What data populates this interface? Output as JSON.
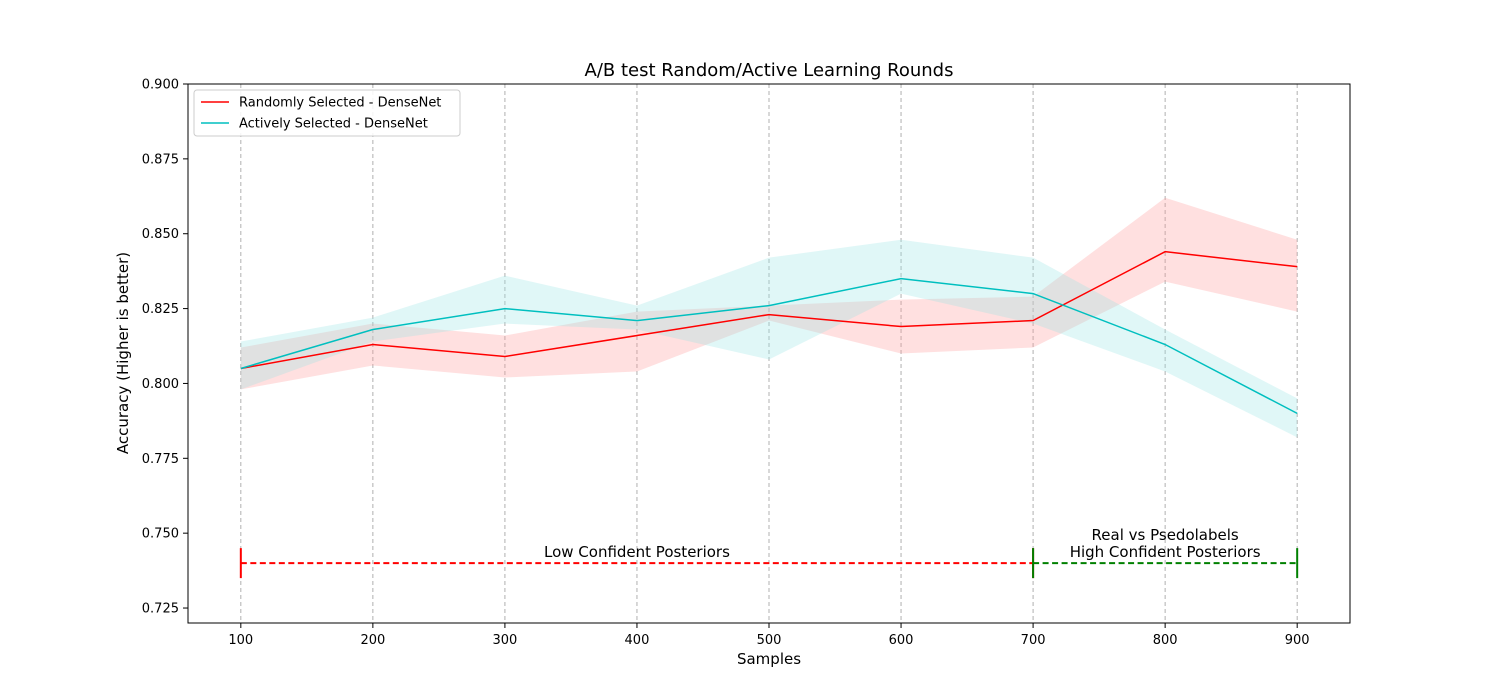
{
  "chart_data": {
    "type": "line",
    "title": "A/B test Random/Active Learning Rounds",
    "xlabel": "Samples",
    "ylabel": "Accuracy (Higher is better)",
    "x": [
      100,
      200,
      300,
      400,
      500,
      600,
      700,
      800,
      900
    ],
    "xlim": [
      60,
      940
    ],
    "ylim": [
      0.72,
      0.9
    ],
    "xticks": [
      100,
      200,
      300,
      400,
      500,
      600,
      700,
      800,
      900
    ],
    "yticks": [
      0.725,
      0.75,
      0.775,
      0.8,
      0.825,
      0.85,
      0.875,
      0.9
    ],
    "ytick_labels": [
      "0.725",
      "0.750",
      "0.775",
      "0.800",
      "0.825",
      "0.850",
      "0.875",
      "0.900"
    ],
    "grid": "x-dashed",
    "legend_position": "top-left",
    "series": [
      {
        "name": "Randomly Selected - DenseNet",
        "color": "#ff0000",
        "band_color": "#ff9999",
        "values": [
          0.805,
          0.813,
          0.809,
          0.816,
          0.823,
          0.819,
          0.821,
          0.844,
          0.839
        ],
        "lower": [
          0.798,
          0.806,
          0.802,
          0.804,
          0.821,
          0.81,
          0.812,
          0.834,
          0.824
        ],
        "upper": [
          0.812,
          0.82,
          0.816,
          0.824,
          0.826,
          0.828,
          0.829,
          0.862,
          0.848
        ]
      },
      {
        "name": "Actively Selected - DenseNet",
        "color": "#00bfbf",
        "band_color": "#99e6e6",
        "values": [
          0.805,
          0.818,
          0.825,
          0.821,
          0.826,
          0.835,
          0.83,
          0.813,
          0.79
        ],
        "lower": [
          0.798,
          0.814,
          0.82,
          0.818,
          0.808,
          0.83,
          0.82,
          0.804,
          0.782
        ],
        "upper": [
          0.814,
          0.822,
          0.836,
          0.826,
          0.842,
          0.848,
          0.842,
          0.818,
          0.795
        ]
      }
    ],
    "annotations": [
      {
        "text_lines": [
          "Low Confident Posteriors"
        ],
        "x_start": 100,
        "x_end": 700,
        "y": 0.74,
        "color": "#ff0000"
      },
      {
        "text_lines": [
          "Real vs Psedolabels",
          "High Confident Posteriors"
        ],
        "x_start": 700,
        "x_end": 900,
        "y": 0.74,
        "color": "#008000"
      }
    ]
  }
}
